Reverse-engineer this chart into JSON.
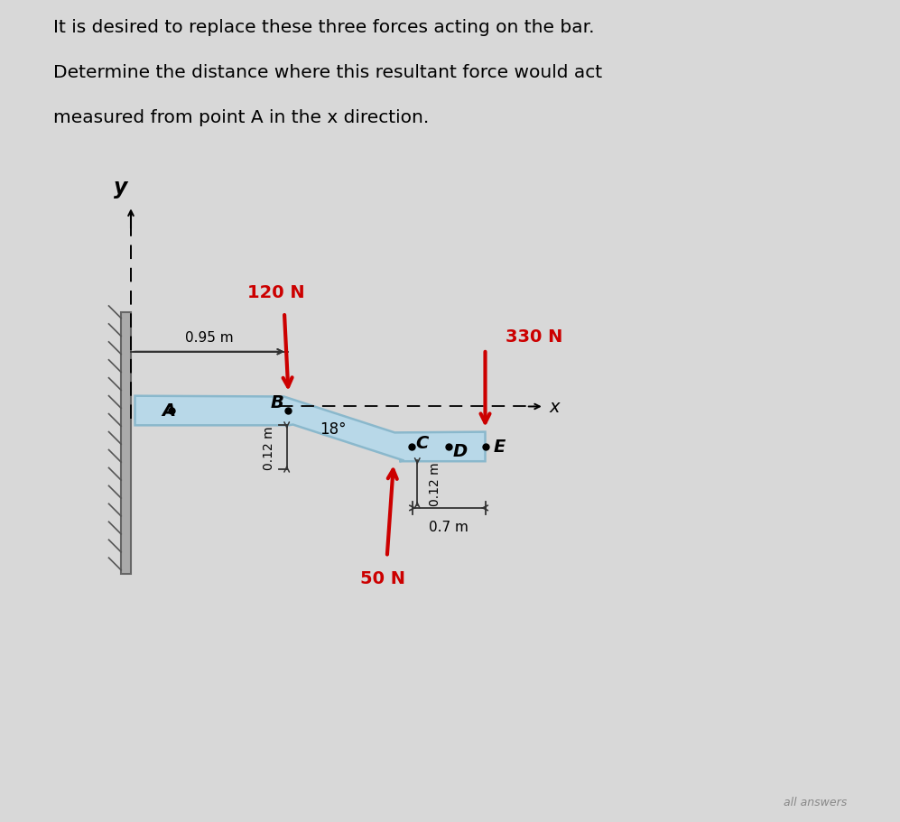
{
  "title_line1": "It is desired to replace these three forces acting on the bar.",
  "title_line2": "Determine the distance where this resultant force would act",
  "title_line3": "measured from point A in the x direction.",
  "bg_color": "#d8d8d8",
  "bar_color": "#b8d8e8",
  "bar_edge_color": "#8ab8cc",
  "force_color": "#cc0000",
  "force_120_label": "120 N",
  "force_330_label": "330 N",
  "force_50_label": "50 N",
  "dim_095": "0.95 m",
  "dim_012a": "0.12 m",
  "dim_012b": "0.12 m",
  "dim_07": "0.7 m",
  "angle_label": "18°",
  "wall_color": "#aaaaaa",
  "wall_edge": "#666666"
}
